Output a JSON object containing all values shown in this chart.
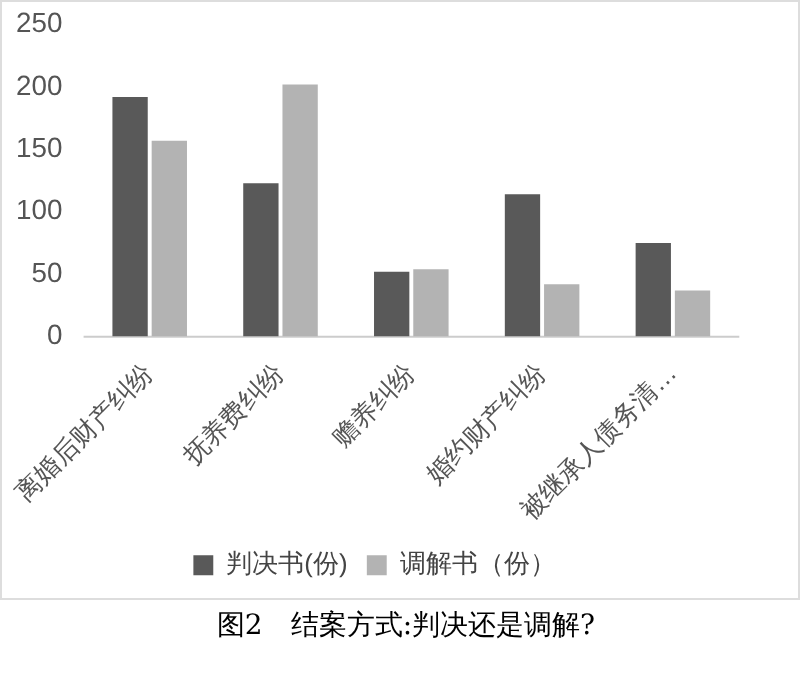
{
  "chart_data": {
    "type": "bar",
    "categories": [
      "离婚后财产纠纷",
      "抚养费纠纷",
      "赡养纠纷",
      "婚约财产纠纷",
      "被继承人债务清…"
    ],
    "series": [
      {
        "name": "判决书(份)",
        "color": "#595959",
        "values": [
          192,
          123,
          52,
          114,
          75
        ]
      },
      {
        "name": "调解书（份）",
        "color": "#b3b3b3",
        "values": [
          157,
          202,
          54,
          42,
          37
        ]
      }
    ],
    "ylim": [
      0,
      250
    ],
    "yticks": [
      0,
      50,
      100,
      150,
      200,
      250
    ],
    "grid": false,
    "legend": "bottom",
    "annotations": [
      "图2　结案方式:判决还是调解?"
    ]
  }
}
